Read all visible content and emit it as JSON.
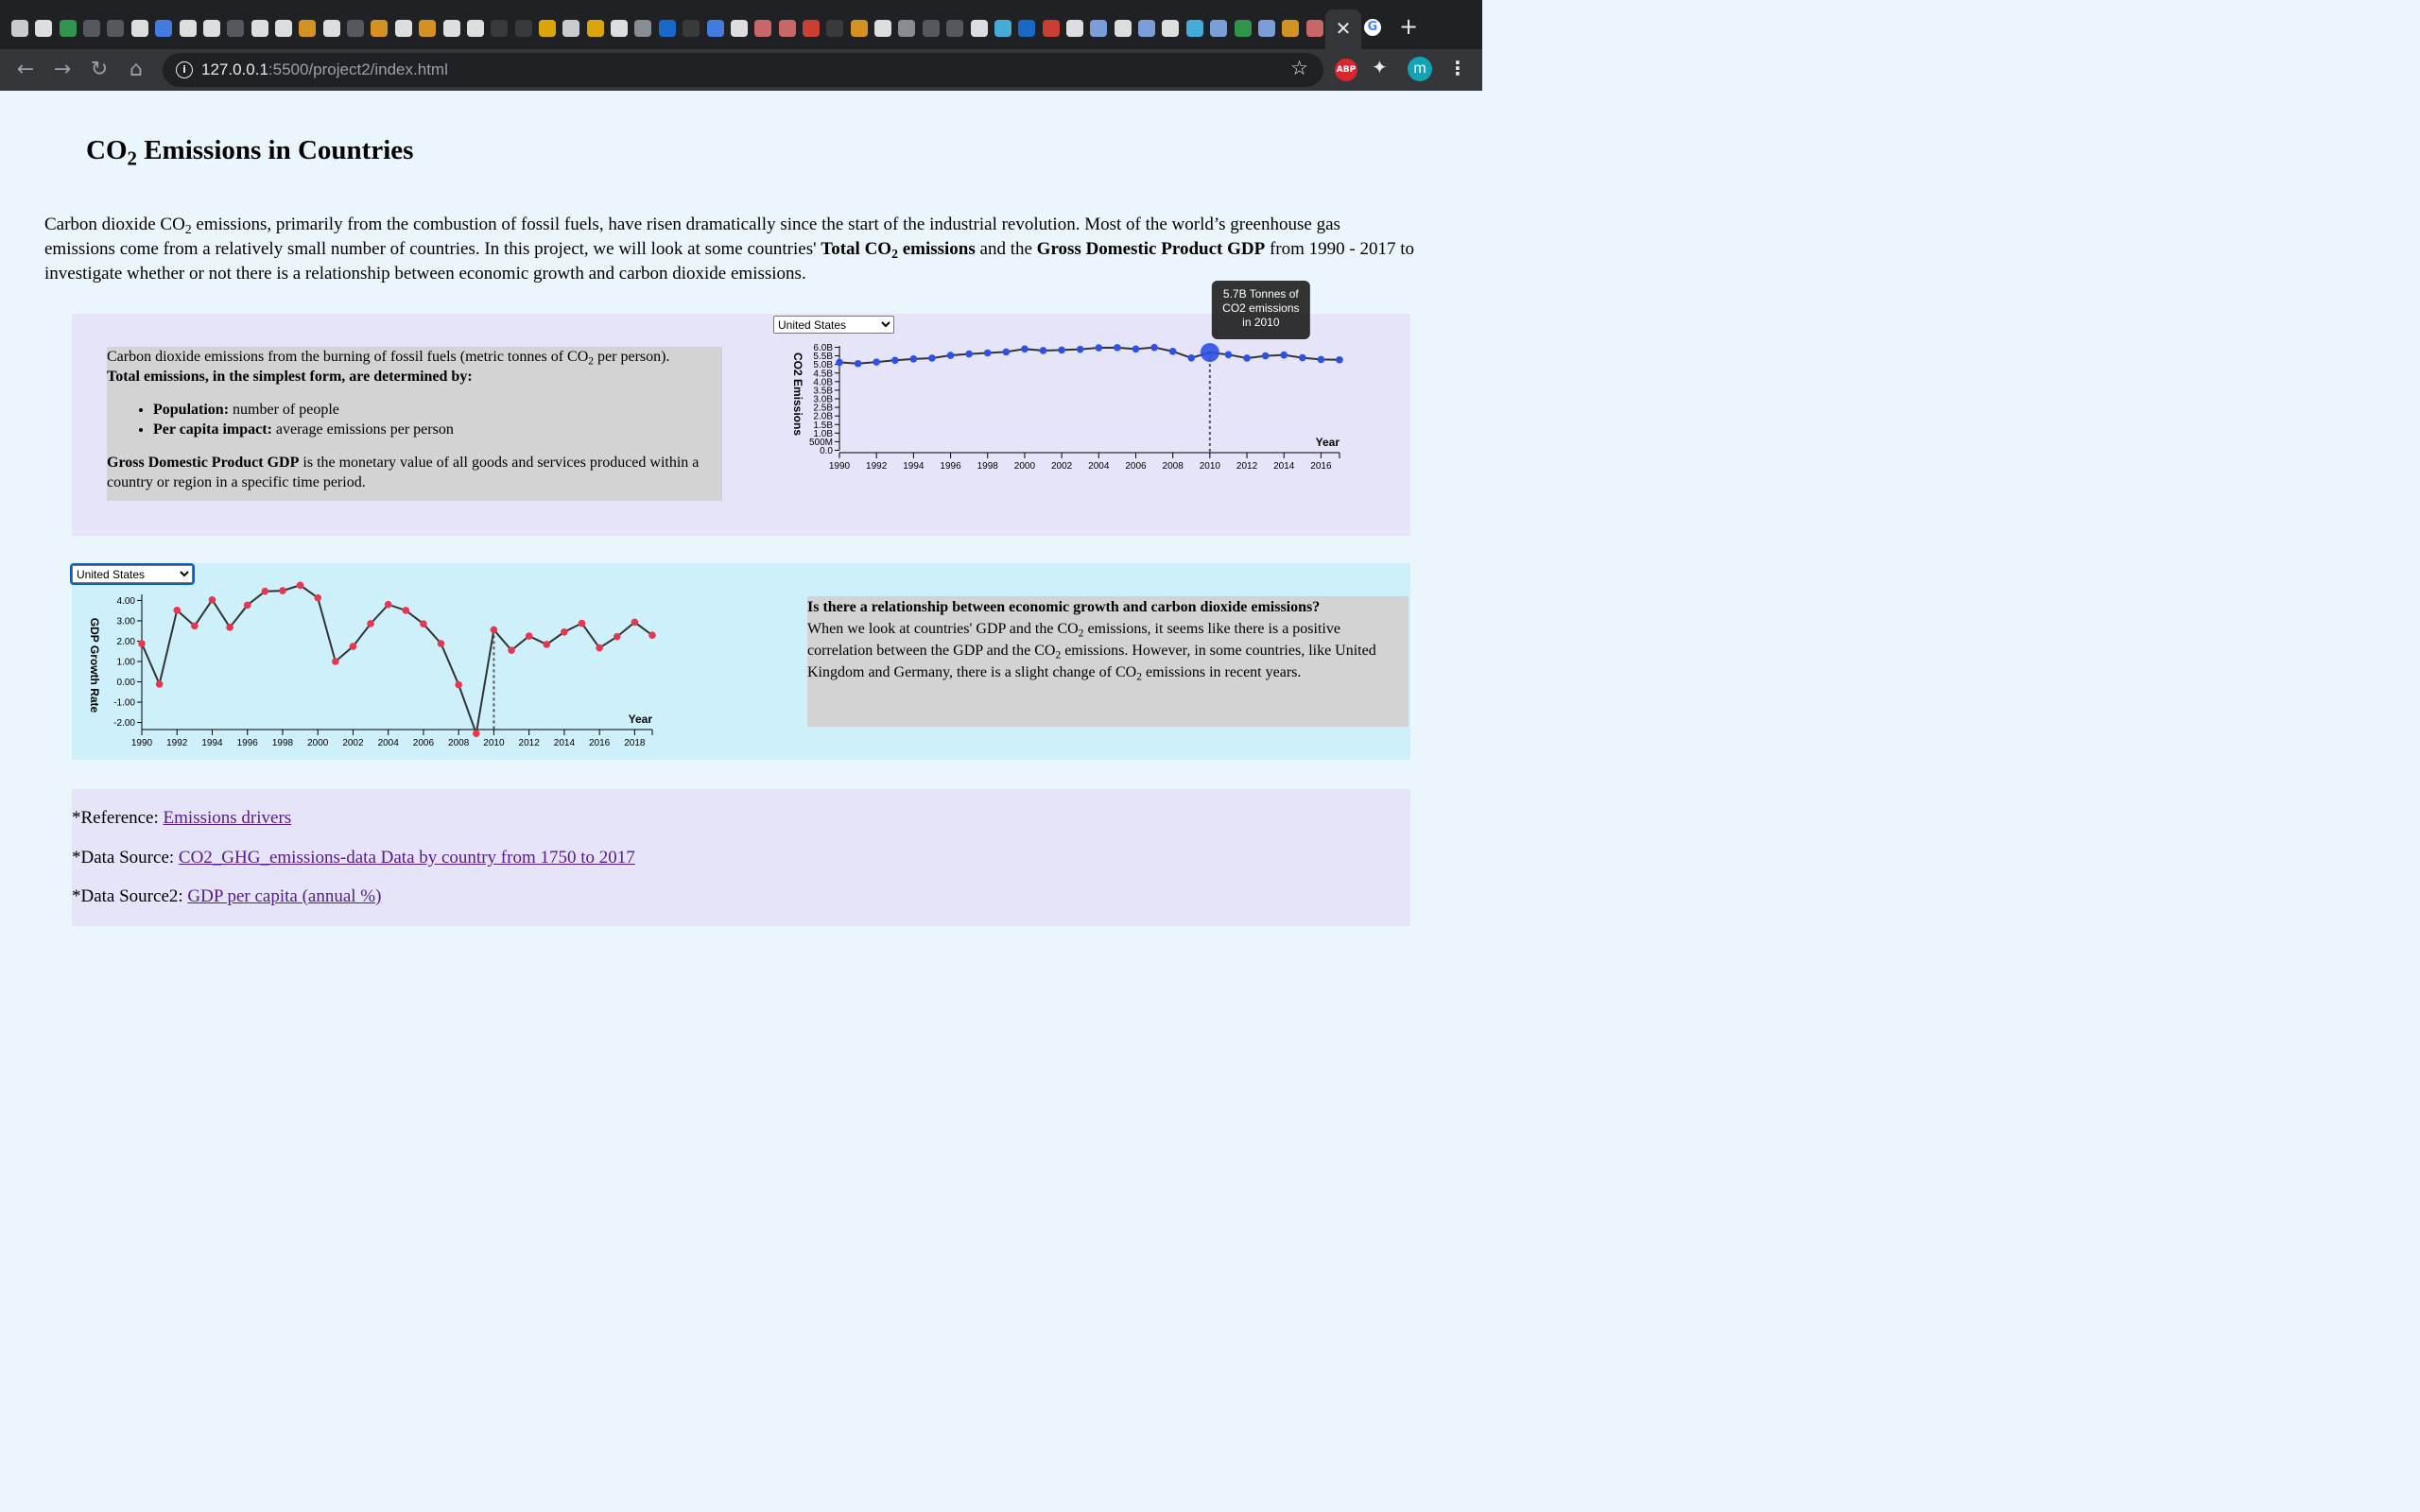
{
  "browser": {
    "url_host": "127.0.0.1",
    "url_path": ":5500/project2/index.html",
    "active_tab_close": "✕",
    "new_tab": "+",
    "avatar_initial": "m",
    "abp_label": "ABP",
    "tab_favicon_colors": [
      "#e8eaed",
      "#ffffff",
      "#34a853",
      "#5f6368",
      "#5f6368",
      "#ffffff",
      "#4a8cff",
      "#ffffff",
      "#ffffff",
      "#5f6368",
      "#ffffff",
      "#ffffff",
      "#f5a623",
      "#ffffff",
      "#5f6368",
      "#f5a623",
      "#ffffff",
      "#f5a623",
      "#ffffff",
      "#ffffff",
      "#3c4043",
      "#3c4043",
      "#fbbc04",
      "#e8eaed",
      "#fbbc04",
      "#ffffff",
      "#9aa0a6",
      "#1a73e8",
      "#3c4043",
      "#4a8cff",
      "#ffffff",
      "#e57373",
      "#e57373",
      "#ea4335",
      "#3c4043",
      "#f5a623",
      "#ffffff",
      "#9aa0a6",
      "#5f6368",
      "#5f6368",
      "#ffffff",
      "#4fc3f7",
      "#1a73e8",
      "#ea4335",
      "#ffffff",
      "#8ab4f8",
      "#ffffff",
      "#8ab4f8",
      "#ffffff",
      "#4fc3f7",
      "#8ab4f8",
      "#34a853",
      "#8ab4f8",
      "#f5a623",
      "#e57373"
    ]
  },
  "page": {
    "title_pre": "CO",
    "title_sub": "2",
    "title_post": " Emissions in Countries",
    "intro": {
      "t1": "Carbon dioxide CO",
      "sub1": "2",
      "t2": " emissions, primarily from the combustion of fossil fuels, have risen dramatically since the start of the industrial revolution. Most of the world’s greenhouse gas emissions come from a relatively small number of countries. In this project, we will look at some countries' ",
      "b1_pre": "Total CO",
      "b1_sub": "2",
      "b1_post": " emissions",
      "t3": " and the ",
      "b2": "Gross Domestic Product GDP",
      "t4": " from 1990 - 2017 to investigate whether or not there is a relationship between economic growth and carbon dioxide emissions."
    }
  },
  "co2_section": {
    "info": {
      "line1_pre": "Carbon dioxide emissions from the burning of fossil fuels (metric tonnes of CO",
      "line1_sub": "2",
      "line1_post": " per person).",
      "heading": "Total emissions, in the simplest form, are determined by:",
      "bullet1_label": "Population:",
      "bullet1_text": " number of people",
      "bullet2_label": "Per capita impact:",
      "bullet2_text": " average emissions per person",
      "gdp_label": "Gross Domestic Product GDP",
      "gdp_text": " is the monetary value of all goods and services produced within a country or region in a specific time period."
    },
    "country_select": "United States"
  },
  "gdp_section": {
    "country_select": "United States",
    "question": {
      "heading": "Is there a relationship between economic growth and carbon dioxide emissions?",
      "text_pre": "When we look at countries' GDP and the CO",
      "text_sub1": "2",
      "text_mid": " emissions, it seems like there is a positive correlation between the GDP and the CO",
      "text_sub2": "2",
      "text_mid2": " emissions. However, in some countries, like United Kingdom and Germany, there is a slight change of CO",
      "text_sub3": "2",
      "text_post": " emissions in recent years."
    }
  },
  "references": {
    "ref1_label": "*Reference: ",
    "ref1_link": "Emissions drivers",
    "ref2_label": "*Data Source: ",
    "ref2_link": "CO2_GHG_emissions-data Data by country from 1750 to 2017",
    "ref3_label": "*Data Source2: ",
    "ref3_link": "GDP per capita (annual %)"
  },
  "chart_data": [
    {
      "type": "line",
      "ylabel": "CO2 Emissions",
      "xlabel": "Year",
      "xlim": [
        1990,
        2017
      ],
      "ylim": [
        0,
        6.0
      ],
      "y_unit": "billion tonnes",
      "y_ticks": [
        0,
        0.5,
        1.0,
        1.5,
        2.0,
        2.5,
        3.0,
        3.5,
        4.0,
        4.5,
        5.0,
        5.5,
        6.0
      ],
      "y_tick_labels": [
        "0.0",
        "500M",
        "1.0B",
        "1.5B",
        "2.0B",
        "2.5B",
        "3.0B",
        "3.5B",
        "4.0B",
        "4.5B",
        "5.0B",
        "5.5B",
        "6.0B"
      ],
      "x_ticks": [
        1990,
        1992,
        1994,
        1996,
        1998,
        2000,
        2002,
        2004,
        2006,
        2008,
        2010,
        2012,
        2014,
        2016
      ],
      "x": [
        1990,
        1991,
        1992,
        1993,
        1994,
        1995,
        1996,
        1997,
        1998,
        1999,
        2000,
        2001,
        2002,
        2003,
        2004,
        2005,
        2006,
        2007,
        2008,
        2009,
        2010,
        2011,
        2012,
        2013,
        2014,
        2015,
        2016,
        2017
      ],
      "values": [
        5.12,
        5.05,
        5.14,
        5.24,
        5.32,
        5.37,
        5.53,
        5.61,
        5.67,
        5.73,
        5.9,
        5.81,
        5.84,
        5.88,
        5.97,
        5.98,
        5.9,
        5.99,
        5.76,
        5.38,
        5.7,
        5.57,
        5.37,
        5.5,
        5.55,
        5.39,
        5.29,
        5.27
      ],
      "highlight_x": 2010,
      "tooltip": [
        "5.7B Tonnes of",
        "CO2 emissions",
        "in 2010"
      ],
      "line_color": "#333333",
      "point_color": "#2e50e6"
    },
    {
      "type": "line",
      "ylabel": "GDP Growth Rate",
      "xlabel": "Year",
      "xlim": [
        1990,
        2019
      ],
      "ylim": [
        -2.6,
        4.6
      ],
      "y_ticks": [
        -2,
        -1,
        0,
        1,
        2,
        3,
        4
      ],
      "y_tick_labels": [
        "-2.00",
        "-1.00",
        "0.00",
        "1.00",
        "2.00",
        "3.00",
        "4.00"
      ],
      "x_ticks": [
        1990,
        1992,
        1994,
        1996,
        1998,
        2000,
        2002,
        2004,
        2006,
        2008,
        2010,
        2012,
        2014,
        2016,
        2018
      ],
      "x": [
        1990,
        1991,
        1992,
        1993,
        1994,
        1995,
        1996,
        1997,
        1998,
        1999,
        2000,
        2001,
        2002,
        2003,
        2004,
        2005,
        2006,
        2007,
        2008,
        2009,
        2010,
        2011,
        2012,
        2013,
        2014,
        2015,
        2016,
        2017,
        2018,
        2019
      ],
      "values": [
        1.88,
        -0.11,
        3.52,
        2.75,
        4.03,
        2.68,
        3.77,
        4.45,
        4.48,
        4.75,
        4.13,
        1.0,
        1.74,
        2.86,
        3.8,
        3.51,
        2.85,
        1.88,
        -0.14,
        -2.54,
        2.56,
        1.55,
        2.25,
        1.84,
        2.45,
        2.88,
        1.67,
        2.22,
        2.93,
        2.29
      ],
      "highlight_x": 2010,
      "line_color": "#333333",
      "point_color": "#e8364f"
    }
  ]
}
